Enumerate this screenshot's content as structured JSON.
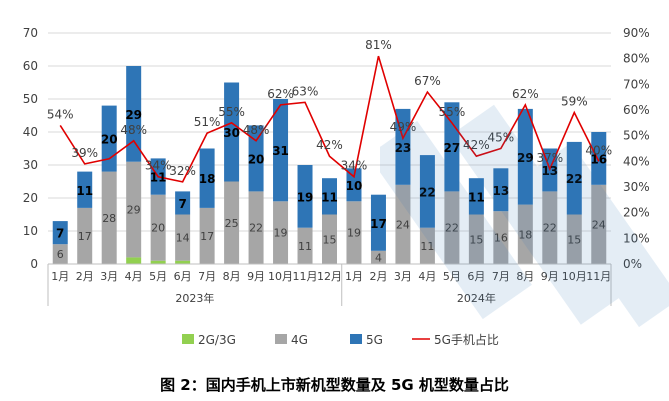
{
  "chart_data": {
    "type": "bar",
    "stacked": true,
    "categories": [
      "1月",
      "2月",
      "3月",
      "4月",
      "5月",
      "6月",
      "7月",
      "8月",
      "9月",
      "10月",
      "11月",
      "12月",
      "1月",
      "2月",
      "3月",
      "4月",
      "5月",
      "6月",
      "7月",
      "8月",
      "9月",
      "10月",
      "11月"
    ],
    "groups": [
      {
        "label": "2023年",
        "start": 0,
        "end": 11
      },
      {
        "label": "2024年",
        "start": 12,
        "end": 22
      }
    ],
    "series": [
      {
        "name": "2G/3G",
        "color": "#92d050",
        "values": [
          0,
          0,
          0,
          2,
          1,
          1,
          0,
          0,
          0,
          0,
          0,
          0,
          0,
          0,
          0,
          0,
          0,
          0,
          0,
          0,
          0,
          0,
          0
        ]
      },
      {
        "name": "4G",
        "color": "#a6a6a6",
        "values": [
          6,
          17,
          28,
          29,
          20,
          14,
          17,
          25,
          22,
          19,
          11,
          15,
          19,
          4,
          24,
          11,
          22,
          15,
          16,
          18,
          22,
          15,
          24
        ]
      },
      {
        "name": "5G",
        "color": "#2e75b6",
        "values": [
          7,
          11,
          20,
          29,
          11,
          7,
          18,
          30,
          20,
          31,
          19,
          11,
          10,
          17,
          23,
          22,
          27,
          11,
          13,
          29,
          13,
          22,
          16
        ]
      }
    ],
    "line": {
      "name": "5G手机占比",
      "color": "#e00000",
      "values": [
        54,
        39,
        41,
        48,
        34,
        32,
        51,
        55,
        48,
        62,
        63,
        42,
        34,
        81,
        49,
        67,
        55,
        42,
        45,
        62,
        37,
        59,
        40
      ],
      "labels": [
        "54%",
        "39%",
        "",
        "48%",
        "34%",
        "32%",
        "51%",
        "55%",
        "48%",
        "62%",
        "63%",
        "42%",
        "34%",
        "81%",
        "49%",
        "67%",
        "55%",
        "42%",
        "45%",
        "62%",
        "37%",
        "59%",
        "40%"
      ]
    },
    "y_left": {
      "min": 0,
      "max": 70,
      "ticks": [
        "0",
        "10",
        "20",
        "30",
        "40",
        "50",
        "60",
        "70"
      ]
    },
    "y_right": {
      "min": 0,
      "max": 90,
      "ticks": [
        "0%",
        "10%",
        "20%",
        "30%",
        "40%",
        "50%",
        "60%",
        "70%",
        "80%",
        "90%"
      ]
    },
    "legend_position": "bottom",
    "title": ""
  },
  "caption": "图 2：国内手机上市新机型数量及 5G 机型数量占比"
}
